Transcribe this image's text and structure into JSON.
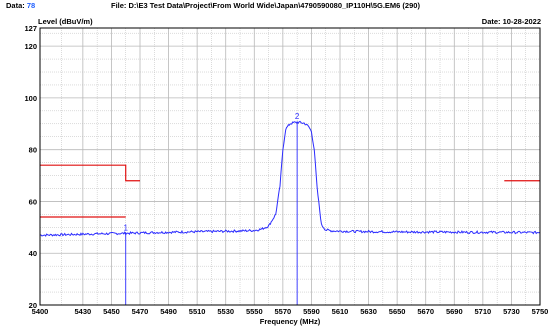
{
  "header": {
    "data_label": "Data:",
    "data_value": "78",
    "file_text": "File: D:\\E3 Test Data\\Project\\From World Wide\\Japan\\4790590080_IP110H\\5G.EM6  (290)",
    "date_text": "Date: 10-28-2022"
  },
  "chart_data": {
    "type": "line",
    "ylabel": "Level (dBuV/m)",
    "xlabel": "Frequency (MHz)",
    "xlim": [
      5400,
      5750
    ],
    "ylim": [
      20,
      127
    ],
    "y_ticks": [
      20,
      40,
      60,
      80,
      100,
      120,
      127
    ],
    "x_ticks": [
      5400,
      5430,
      5450,
      5470,
      5490,
      5510,
      5530,
      5550,
      5570,
      5590,
      5610,
      5630,
      5650,
      5670,
      5690,
      5710,
      5730,
      5750
    ],
    "grid": true,
    "colors": {
      "trace": "#2b2bff",
      "limit": "#e01010",
      "grid": "#b8b8b8",
      "markers": "#2b2bff"
    },
    "series": [
      {
        "x": [
          5400,
          5420,
          5440,
          5460,
          5480,
          5500,
          5520,
          5540,
          5550,
          5555,
          5560,
          5565,
          5568,
          5570,
          5572,
          5575,
          5578,
          5580,
          5582,
          5585,
          5588,
          5590,
          5592,
          5594,
          5597,
          5600,
          5605,
          5620,
          5640,
          5660,
          5680,
          5700,
          5720,
          5740,
          5750
        ],
        "y": [
          47,
          47.2,
          47.5,
          47.7,
          48,
          48.2,
          48.4,
          48.6,
          48.8,
          49.3,
          50.5,
          55,
          66,
          80,
          88,
          90,
          90.5,
          90.6,
          90.5,
          90.2,
          89,
          87,
          80,
          65,
          51,
          49,
          48.6,
          48.4,
          48.3,
          48.2,
          48.2,
          48.1,
          48.1,
          48,
          48
        ]
      }
    ],
    "limits": [
      {
        "x": [
          5400,
          5460,
          5460,
          5470
        ],
        "y": [
          74,
          74,
          68,
          68
        ]
      },
      {
        "x": [
          5400,
          5460
        ],
        "y": [
          54,
          54
        ]
      },
      {
        "x": [
          5725,
          5750
        ],
        "y": [
          68,
          68
        ]
      }
    ],
    "markers": [
      {
        "label": "1",
        "x": 5460,
        "y": 47.7
      },
      {
        "label": "2",
        "x": 5580,
        "y": 90.6
      }
    ]
  }
}
